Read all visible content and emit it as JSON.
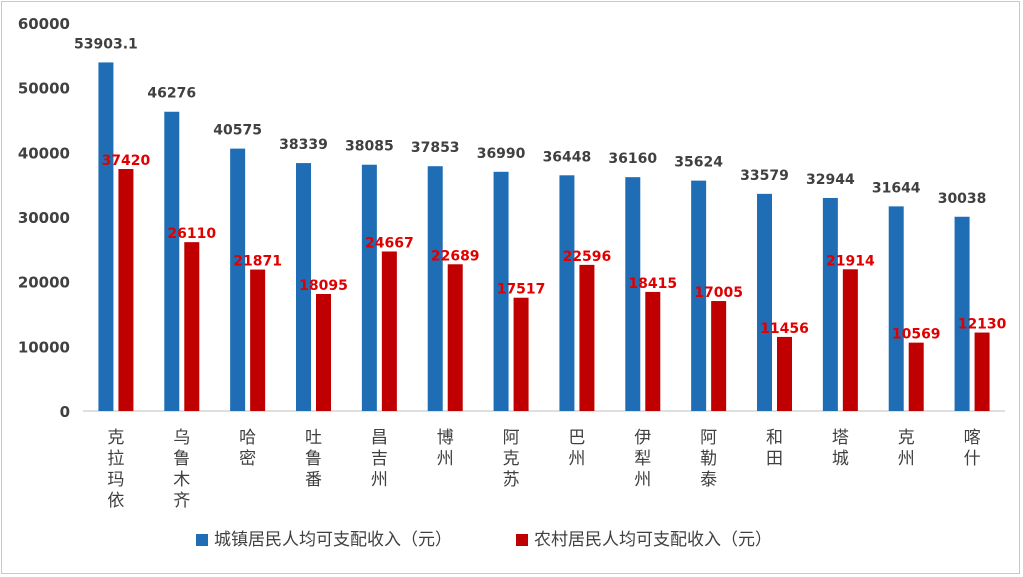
{
  "chart_data": {
    "type": "bar",
    "title": "",
    "xlabel": "",
    "ylabel": "",
    "ylim": [
      0,
      60000
    ],
    "yticks": [
      0,
      10000,
      20000,
      30000,
      40000,
      50000,
      60000
    ],
    "grid": false,
    "legend_position": "bottom",
    "categories": [
      "克拉玛依",
      "乌鲁木齐",
      "哈密",
      "吐鲁番",
      "昌吉州",
      "博州",
      "阿克苏",
      "巴州",
      "伊犁州",
      "阿勒泰",
      "和田",
      "塔城",
      "克州",
      "喀什"
    ],
    "series": [
      {
        "name": "城镇居民人均可支配收入（元）",
        "color": "#1f6db5",
        "label_color": "#404040",
        "values": [
          53903.1,
          46276,
          40575,
          38339,
          38085,
          37853,
          36990,
          36448,
          36160,
          35624,
          33579,
          32944,
          31644,
          30038
        ],
        "labels": [
          "53903.1",
          "46276",
          "40575",
          "38339",
          "38085",
          "37853",
          "36990",
          "36448",
          "36160",
          "35624",
          "33579",
          "32944",
          "31644",
          "30038"
        ]
      },
      {
        "name": "农村居民人均可支配收入（元）",
        "color": "#c00000",
        "label_color": "#e00000",
        "values": [
          37420,
          26110,
          21871,
          18095,
          24667,
          22689,
          17517,
          22596,
          18415,
          17005,
          11456,
          21914,
          10569,
          12130
        ],
        "labels": [
          "37420",
          "26110",
          "21871",
          "18095",
          "24667",
          "22689",
          "17517",
          "22596",
          "18415",
          "17005",
          "11456",
          "21914",
          "10569",
          "12130"
        ]
      }
    ]
  }
}
